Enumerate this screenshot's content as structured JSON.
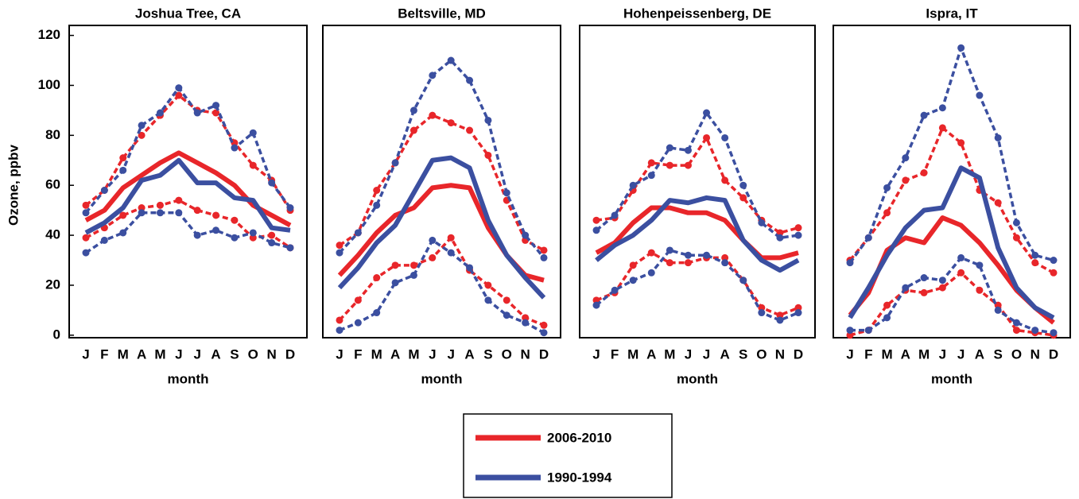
{
  "chart_data": [
    {
      "type": "line",
      "title": "Joshua Tree, CA",
      "xlabel": "month",
      "ylabel": "Ozone, ppbv",
      "categories": [
        "J",
        "F",
        "M",
        "A",
        "M",
        "J",
        "J",
        "A",
        "S",
        "O",
        "N",
        "D"
      ],
      "ylim": [
        -1,
        124
      ],
      "yticks": [
        0,
        20,
        40,
        60,
        80,
        100,
        120
      ],
      "series": [
        {
          "color": "#e8262a",
          "style": "dashed",
          "values": [
            52,
            58,
            71,
            80,
            88,
            96,
            90,
            89,
            77,
            68,
            62,
            50
          ]
        },
        {
          "color": "#e8262a",
          "style": "dashed",
          "values": [
            39,
            43,
            48,
            51,
            52,
            54,
            50,
            48,
            46,
            39,
            40,
            35
          ]
        },
        {
          "color": "#3b4fa0",
          "style": "dashed",
          "values": [
            49,
            58,
            66,
            84,
            89,
            99,
            89,
            92,
            75,
            81,
            61,
            51
          ]
        },
        {
          "color": "#3b4fa0",
          "style": "dashed",
          "values": [
            33,
            38,
            41,
            49,
            49,
            49,
            40,
            42,
            39,
            41,
            37,
            35
          ]
        },
        {
          "color": "#e8262a",
          "style": "solid",
          "values": [
            46,
            50,
            59,
            64,
            69,
            73,
            69,
            65,
            60,
            52,
            48,
            44
          ]
        },
        {
          "color": "#3b4fa0",
          "style": "solid",
          "values": [
            41,
            45,
            51,
            62,
            64,
            70,
            61,
            61,
            55,
            54,
            43,
            42
          ]
        }
      ]
    },
    {
      "type": "line",
      "title": "Beltsville, MD",
      "xlabel": "month",
      "categories": [
        "J",
        "F",
        "M",
        "A",
        "M",
        "J",
        "J",
        "A",
        "S",
        "O",
        "N",
        "D"
      ],
      "ylim": [
        -1,
        124
      ],
      "series": [
        {
          "color": "#e8262a",
          "style": "dashed",
          "values": [
            36,
            41,
            58,
            69,
            82,
            88,
            85,
            82,
            72,
            54,
            38,
            34
          ]
        },
        {
          "color": "#e8262a",
          "style": "dashed",
          "values": [
            6,
            14,
            23,
            28,
            28,
            31,
            39,
            26,
            20,
            14,
            7,
            4
          ]
        },
        {
          "color": "#3b4fa0",
          "style": "dashed",
          "values": [
            33,
            41,
            52,
            69,
            90,
            104,
            110,
            102,
            86,
            57,
            40,
            31
          ]
        },
        {
          "color": "#3b4fa0",
          "style": "dashed",
          "values": [
            2,
            5,
            9,
            21,
            24,
            38,
            33,
            27,
            14,
            8,
            5,
            1
          ]
        },
        {
          "color": "#e8262a",
          "style": "solid",
          "values": [
            24,
            32,
            41,
            48,
            51,
            59,
            60,
            59,
            43,
            32,
            24,
            22
          ]
        },
        {
          "color": "#3b4fa0",
          "style": "solid",
          "values": [
            19,
            27,
            37,
            44,
            57,
            70,
            71,
            67,
            46,
            32,
            23,
            15
          ]
        }
      ]
    },
    {
      "type": "line",
      "title": "Hohenpeissenberg, DE",
      "xlabel": "month",
      "categories": [
        "J",
        "F",
        "M",
        "A",
        "M",
        "J",
        "J",
        "A",
        "S",
        "O",
        "N",
        "D"
      ],
      "ylim": [
        -1,
        124
      ],
      "series": [
        {
          "color": "#e8262a",
          "style": "dashed",
          "values": [
            46,
            47,
            58,
            69,
            68,
            68,
            79,
            62,
            55,
            46,
            41,
            43
          ]
        },
        {
          "color": "#e8262a",
          "style": "dashed",
          "values": [
            14,
            17,
            28,
            33,
            29,
            29,
            31,
            31,
            22,
            11,
            8,
            11
          ]
        },
        {
          "color": "#3b4fa0",
          "style": "dashed",
          "values": [
            42,
            48,
            60,
            64,
            75,
            74,
            89,
            79,
            60,
            45,
            39,
            40
          ]
        },
        {
          "color": "#3b4fa0",
          "style": "dashed",
          "values": [
            12,
            18,
            22,
            25,
            34,
            32,
            32,
            29,
            22,
            9,
            6,
            9
          ]
        },
        {
          "color": "#e8262a",
          "style": "solid",
          "values": [
            33,
            37,
            45,
            51,
            51,
            49,
            49,
            46,
            38,
            31,
            31,
            33
          ]
        },
        {
          "color": "#3b4fa0",
          "style": "solid",
          "values": [
            30,
            36,
            40,
            46,
            54,
            53,
            55,
            54,
            38,
            30,
            26,
            30
          ]
        }
      ]
    },
    {
      "type": "line",
      "title": "Ispra, IT",
      "xlabel": "month",
      "categories": [
        "J",
        "F",
        "M",
        "A",
        "M",
        "J",
        "J",
        "A",
        "S",
        "O",
        "N",
        "D"
      ],
      "ylim": [
        -1,
        124
      ],
      "series": [
        {
          "color": "#e8262a",
          "style": "dashed",
          "values": [
            30,
            39,
            49,
            62,
            65,
            83,
            77,
            58,
            53,
            39,
            29,
            25
          ]
        },
        {
          "color": "#e8262a",
          "style": "dashed",
          "values": [
            0,
            2,
            12,
            18,
            17,
            19,
            25,
            18,
            12,
            2,
            1,
            0
          ]
        },
        {
          "color": "#3b4fa0",
          "style": "dashed",
          "values": [
            29,
            39,
            59,
            71,
            88,
            91,
            115,
            96,
            79,
            45,
            32,
            30
          ]
        },
        {
          "color": "#3b4fa0",
          "style": "dashed",
          "values": [
            2,
            2,
            7,
            19,
            23,
            22,
            31,
            28,
            10,
            5,
            2,
            1
          ]
        },
        {
          "color": "#e8262a",
          "style": "solid",
          "values": [
            8,
            17,
            34,
            39,
            37,
            47,
            44,
            37,
            28,
            18,
            11,
            5
          ]
        },
        {
          "color": "#3b4fa0",
          "style": "solid",
          "values": [
            7,
            19,
            32,
            43,
            50,
            51,
            67,
            63,
            35,
            19,
            11,
            7
          ]
        }
      ]
    }
  ],
  "legend": [
    {
      "name": "2006-2010",
      "color": "#e8262a"
    },
    {
      "name": "1990-1994",
      "color": "#3b4fa0"
    }
  ]
}
